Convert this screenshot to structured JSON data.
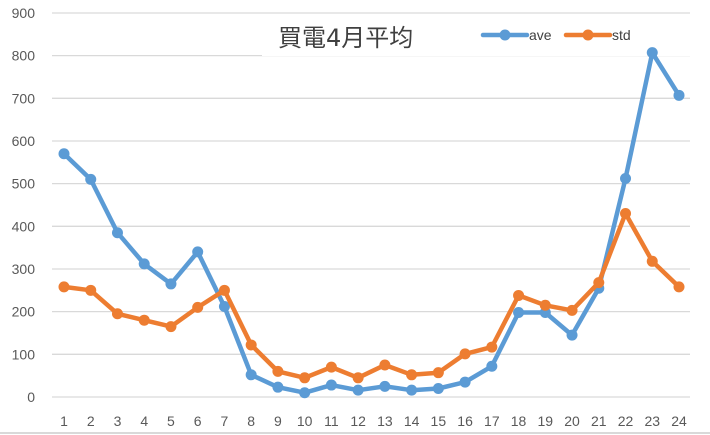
{
  "chart_data": {
    "type": "line",
    "title": "買電4月平均",
    "xlabel": "",
    "ylabel": "",
    "categories": [
      "1",
      "2",
      "3",
      "4",
      "5",
      "6",
      "7",
      "8",
      "9",
      "10",
      "11",
      "12",
      "13",
      "14",
      "15",
      "16",
      "17",
      "18",
      "19",
      "20",
      "21",
      "22",
      "23",
      "24"
    ],
    "series": [
      {
        "name": "ave",
        "color": "#5B9BD5",
        "values": [
          570,
          510,
          385,
          312,
          265,
          340,
          212,
          52,
          23,
          10,
          28,
          16,
          25,
          16,
          20,
          35,
          72,
          198,
          198,
          145,
          255,
          512,
          807,
          707
        ]
      },
      {
        "name": "std",
        "color": "#ED7D31",
        "values": [
          258,
          250,
          195,
          180,
          165,
          210,
          250,
          122,
          60,
          45,
          70,
          45,
          75,
          52,
          57,
          101,
          117,
          238,
          215,
          203,
          268,
          430,
          318,
          258
        ]
      }
    ],
    "ylim": [
      0,
      900
    ],
    "yticks": [
      0,
      100,
      200,
      300,
      400,
      500,
      600,
      700,
      800,
      900
    ],
    "grid": true,
    "legend_position": "top-right"
  }
}
